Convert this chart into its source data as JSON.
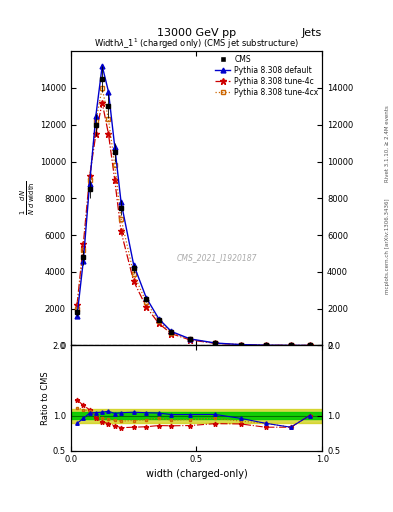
{
  "title_top": "13000 GeV pp",
  "title_right": "Jets",
  "plot_title": "Width $\\lambda\\_1^1$ (charged only) (CMS jet substructure)",
  "xlabel": "width (charged-only)",
  "ylabel_main": "$\\frac{1}{N} \\frac{dN}{d\\,\\mathrm{width}}$",
  "ylabel_ratio": "Ratio to CMS",
  "watermark": "CMS_2021_I1920187",
  "rivet_text": "Rivet 3.1.10, ≥ 2.4M events",
  "mcplots_text": "mcplots.cern.ch [arXiv:1306.3436]",
  "x_data": [
    0.025,
    0.05,
    0.075,
    0.1,
    0.125,
    0.15,
    0.175,
    0.2,
    0.25,
    0.3,
    0.35,
    0.4,
    0.475,
    0.575,
    0.675,
    0.775,
    0.875,
    0.95
  ],
  "cms_data": [
    1800,
    4800,
    8500,
    12000,
    14500,
    13000,
    10500,
    7500,
    4200,
    2500,
    1400,
    750,
    350,
    130,
    50,
    18,
    6,
    2
  ],
  "cms_errors": [
    200,
    400,
    500,
    600,
    700,
    650,
    500,
    400,
    250,
    150,
    100,
    60,
    30,
    15,
    8,
    4,
    2,
    1
  ],
  "pythia_default_data": [
    1600,
    4600,
    8800,
    12500,
    15200,
    13800,
    10800,
    7800,
    4400,
    2600,
    1450,
    760,
    355,
    132,
    48,
    16,
    5,
    2
  ],
  "pythia_4c_data": [
    2200,
    5500,
    9200,
    11500,
    13200,
    11500,
    9000,
    6200,
    3500,
    2100,
    1200,
    640,
    300,
    115,
    44,
    15,
    5,
    2
  ],
  "pythia_4cx_data": [
    2000,
    5200,
    9000,
    12200,
    14000,
    12300,
    9800,
    6900,
    3900,
    2350,
    1350,
    700,
    330,
    125,
    46,
    16,
    5,
    2
  ],
  "cms_color": "#000000",
  "pythia_default_color": "#0000cc",
  "pythia_4c_color": "#cc0000",
  "pythia_4cx_color": "#cc6600",
  "ratio_band_green": "#00cc00",
  "ratio_band_yellow": "#cccc00",
  "ylim_main": [
    0,
    16000
  ],
  "ylim_ratio": [
    0.5,
    2.0
  ],
  "xlim": [
    0.0,
    1.0
  ],
  "yticks_main": [
    0,
    2000,
    4000,
    6000,
    8000,
    10000,
    12000,
    14000
  ],
  "xticks": [
    0.0,
    0.5,
    1.0
  ],
  "yticks_ratio": [
    0.5,
    1.0,
    2.0
  ]
}
